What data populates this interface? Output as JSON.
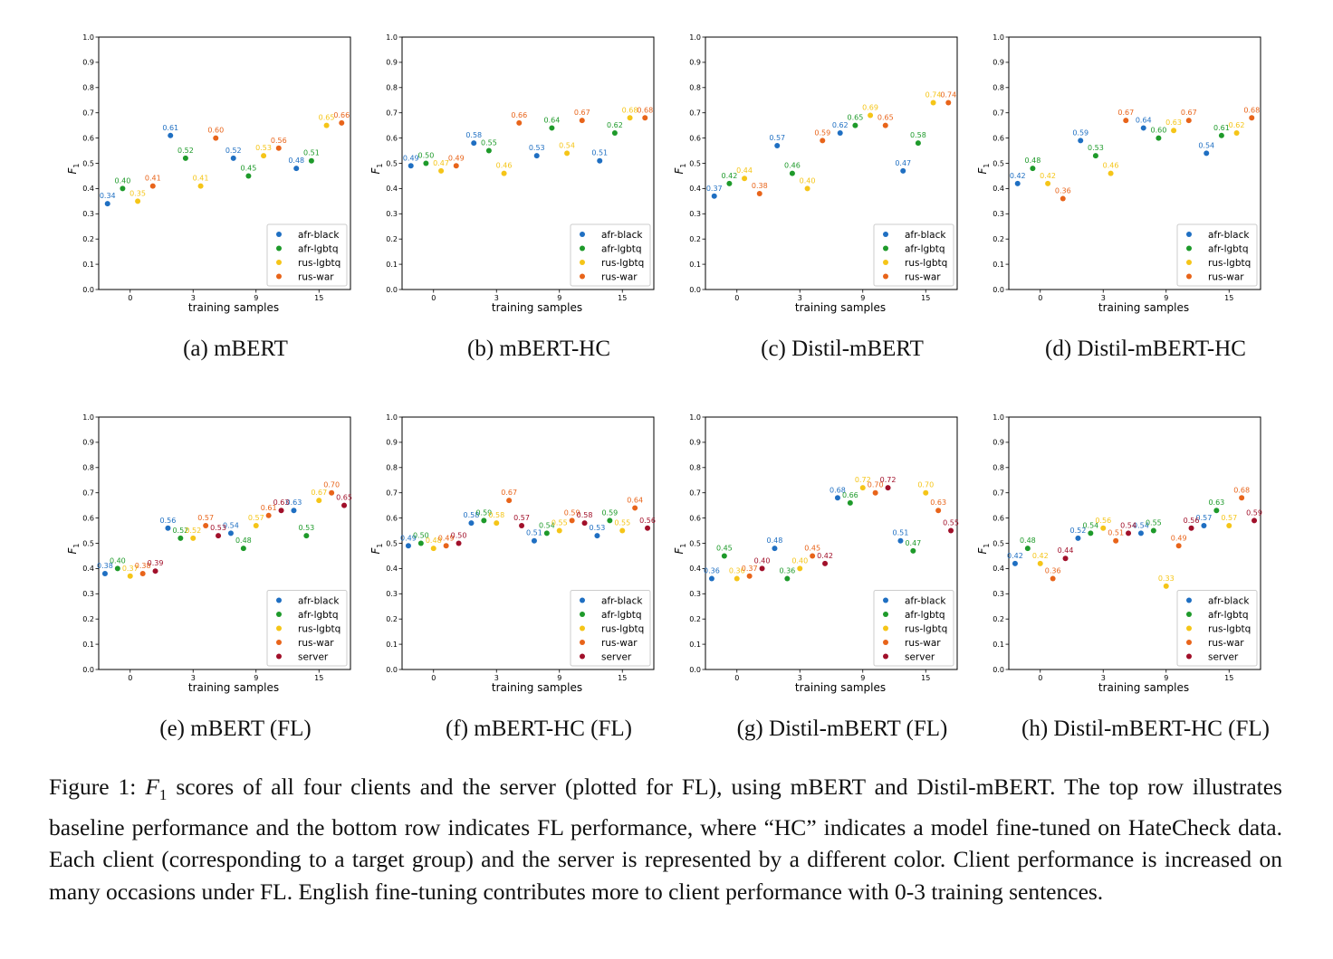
{
  "figure": {
    "caption_prefix": "Figure 1: ",
    "caption_f": "F",
    "caption_sub": "1",
    "caption_text": " scores of all four clients and the server (plotted for FL), using mBERT and Distil-mBERT. The top row illustrates baseline performance and the bottom row indicates FL performance, where “HC” indicates a model fine-tuned on HateCheck data. Each client (corresponding to a target group) and the server is represented by a different color. Client performance is increased on many occasions under FL. English fine-tuning contributes more to client performance with 0-3 training sentences."
  },
  "colors": {
    "afr-black": "#1f6fc2",
    "afr-lgbtq": "#1e9a2a",
    "rus-lgbtq": "#f5c518",
    "rus-war": "#e8641a",
    "server": "#a1102a"
  },
  "chart_data": [
    {
      "type": "scatter",
      "caption": "(a) mBERT",
      "xlabel": "training samples",
      "ylabel": "F1",
      "ylim": [
        0,
        1
      ],
      "categories": [
        "0",
        "3",
        "9",
        "15"
      ],
      "legend_position": "lower-right",
      "series": [
        {
          "name": "afr-black",
          "values": [
            0.34,
            0.61,
            0.52,
            0.48
          ]
        },
        {
          "name": "afr-lgbtq",
          "values": [
            0.4,
            0.52,
            0.45,
            0.51
          ]
        },
        {
          "name": "rus-lgbtq",
          "values": [
            0.35,
            0.41,
            0.53,
            0.65
          ]
        },
        {
          "name": "rus-war",
          "values": [
            0.41,
            0.6,
            0.56,
            0.66
          ]
        }
      ]
    },
    {
      "type": "scatter",
      "caption": "(b) mBERT-HC",
      "xlabel": "training samples",
      "ylabel": "F1",
      "ylim": [
        0,
        1
      ],
      "categories": [
        "0",
        "3",
        "9",
        "15"
      ],
      "legend_position": "lower-right",
      "series": [
        {
          "name": "afr-black",
          "values": [
            0.49,
            0.58,
            0.53,
            0.51
          ]
        },
        {
          "name": "afr-lgbtq",
          "values": [
            0.5,
            0.55,
            0.64,
            0.62
          ]
        },
        {
          "name": "rus-lgbtq",
          "values": [
            0.47,
            0.46,
            0.54,
            0.68
          ]
        },
        {
          "name": "rus-war",
          "values": [
            0.49,
            0.66,
            0.67,
            0.68
          ]
        }
      ]
    },
    {
      "type": "scatter",
      "caption": "(c) Distil-mBERT",
      "xlabel": "training samples",
      "ylabel": "F1",
      "ylim": [
        0,
        1
      ],
      "categories": [
        "0",
        "3",
        "9",
        "15"
      ],
      "legend_position": "lower-right",
      "series": [
        {
          "name": "afr-black",
          "values": [
            0.37,
            0.57,
            0.62,
            0.47
          ]
        },
        {
          "name": "afr-lgbtq",
          "values": [
            0.42,
            0.46,
            0.65,
            0.58
          ]
        },
        {
          "name": "rus-lgbtq",
          "values": [
            0.44,
            0.4,
            0.69,
            0.74
          ]
        },
        {
          "name": "rus-war",
          "values": [
            0.38,
            0.59,
            0.65,
            0.74
          ]
        }
      ]
    },
    {
      "type": "scatter",
      "caption": "(d) Distil-mBERT-HC",
      "xlabel": "training samples",
      "ylabel": "F1",
      "ylim": [
        0,
        1
      ],
      "categories": [
        "0",
        "3",
        "9",
        "15"
      ],
      "legend_position": "lower-right",
      "series": [
        {
          "name": "afr-black",
          "values": [
            0.42,
            0.59,
            0.64,
            0.54
          ]
        },
        {
          "name": "afr-lgbtq",
          "values": [
            0.48,
            0.53,
            0.6,
            0.61
          ]
        },
        {
          "name": "rus-lgbtq",
          "values": [
            0.42,
            0.46,
            0.63,
            0.62
          ]
        },
        {
          "name": "rus-war",
          "values": [
            0.36,
            0.67,
            0.67,
            0.68
          ]
        }
      ]
    },
    {
      "type": "scatter",
      "caption": "(e) mBERT (FL)",
      "xlabel": "training samples",
      "ylabel": "F1",
      "ylim": [
        0,
        1
      ],
      "categories": [
        "0",
        "3",
        "9",
        "15"
      ],
      "legend_position": "lower-right",
      "series": [
        {
          "name": "afr-black",
          "values": [
            0.38,
            0.56,
            0.54,
            0.63
          ]
        },
        {
          "name": "afr-lgbtq",
          "values": [
            0.4,
            0.52,
            0.48,
            0.53
          ]
        },
        {
          "name": "rus-lgbtq",
          "values": [
            0.37,
            0.52,
            0.57,
            0.67
          ]
        },
        {
          "name": "rus-war",
          "values": [
            0.38,
            0.57,
            0.61,
            0.7
          ]
        },
        {
          "name": "server",
          "values": [
            0.39,
            0.53,
            0.63,
            0.65
          ]
        }
      ]
    },
    {
      "type": "scatter",
      "caption": "(f) mBERT-HC (FL)",
      "xlabel": "training samples",
      "ylabel": "F1",
      "ylim": [
        0,
        1
      ],
      "categories": [
        "0",
        "3",
        "9",
        "15"
      ],
      "legend_position": "lower-right",
      "series": [
        {
          "name": "afr-black",
          "values": [
            0.49,
            0.58,
            0.51,
            0.53
          ]
        },
        {
          "name": "afr-lgbtq",
          "values": [
            0.5,
            0.59,
            0.54,
            0.59
          ]
        },
        {
          "name": "rus-lgbtq",
          "values": [
            0.48,
            0.58,
            0.55,
            0.55
          ]
        },
        {
          "name": "rus-war",
          "values": [
            0.49,
            0.67,
            0.59,
            0.64
          ]
        },
        {
          "name": "server",
          "values": [
            0.5,
            0.57,
            0.58,
            0.56
          ]
        }
      ]
    },
    {
      "type": "scatter",
      "caption": "(g) Distil-mBERT (FL)",
      "xlabel": "training samples",
      "ylabel": "F1",
      "ylim": [
        0,
        1
      ],
      "categories": [
        "0",
        "3",
        "9",
        "15"
      ],
      "legend_position": "lower-right",
      "series": [
        {
          "name": "afr-black",
          "values": [
            0.36,
            0.48,
            0.68,
            0.51
          ]
        },
        {
          "name": "afr-lgbtq",
          "values": [
            0.45,
            0.36,
            0.66,
            0.47
          ]
        },
        {
          "name": "rus-lgbtq",
          "values": [
            0.36,
            0.4,
            0.72,
            0.7
          ]
        },
        {
          "name": "rus-war",
          "values": [
            0.37,
            0.45,
            0.7,
            0.63
          ]
        },
        {
          "name": "server",
          "values": [
            0.4,
            0.42,
            0.72,
            0.55
          ]
        }
      ]
    },
    {
      "type": "scatter",
      "caption": "(h) Distil-mBERT-HC (FL)",
      "xlabel": "training samples",
      "ylabel": "F1",
      "ylim": [
        0,
        1
      ],
      "categories": [
        "0",
        "3",
        "9",
        "15"
      ],
      "legend_position": "lower-right",
      "series": [
        {
          "name": "afr-black",
          "values": [
            0.42,
            0.52,
            0.54,
            0.57
          ]
        },
        {
          "name": "afr-lgbtq",
          "values": [
            0.48,
            0.54,
            0.55,
            0.63
          ]
        },
        {
          "name": "rus-lgbtq",
          "values": [
            0.42,
            0.56,
            0.33,
            0.57
          ]
        },
        {
          "name": "rus-war",
          "values": [
            0.36,
            0.51,
            0.49,
            0.68
          ]
        },
        {
          "name": "server",
          "values": [
            0.44,
            0.54,
            0.56,
            0.59
          ]
        }
      ]
    }
  ]
}
